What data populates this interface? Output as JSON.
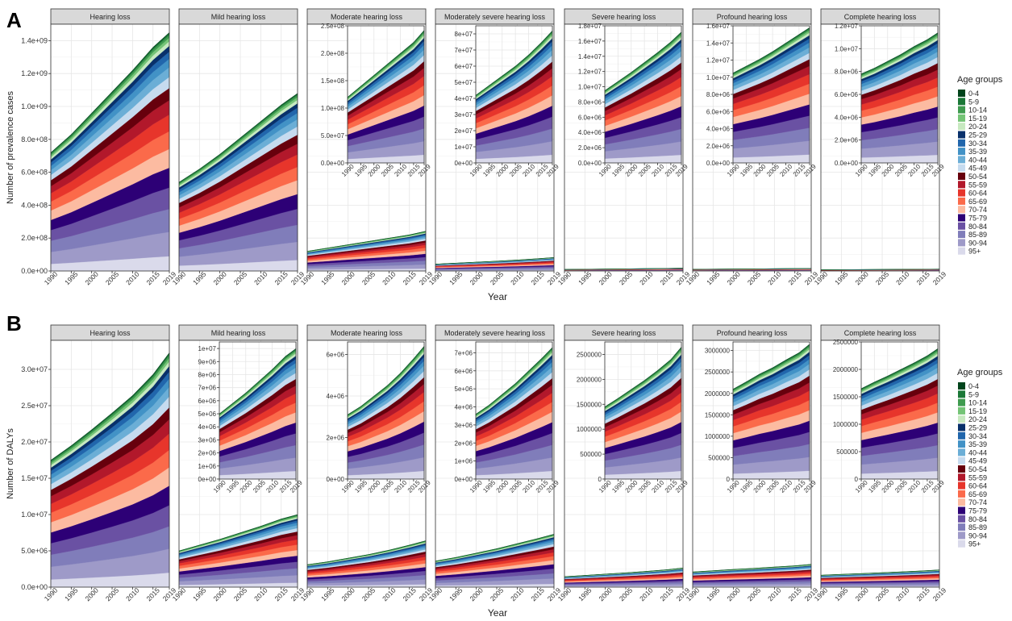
{
  "figure": {
    "years": [
      1990,
      1995,
      2000,
      2005,
      2010,
      2015,
      2019
    ],
    "xlabel": "Year",
    "legend": {
      "title": "Age groups",
      "items": [
        "0-4",
        "5-9",
        "10-14",
        "15-19",
        "20-24",
        "25-29",
        "30-34",
        "35-39",
        "40-44",
        "45-49",
        "50-54",
        "55-59",
        "60-64",
        "65-69",
        "70-74",
        "75-79",
        "80-84",
        "85-89",
        "90-94",
        "95+"
      ],
      "colors": [
        "#00441b",
        "#1b7837",
        "#3f9b4f",
        "#74c476",
        "#c7e9c0",
        "#08306b",
        "#2166ac",
        "#4292c6",
        "#6baed6",
        "#c6dbef",
        "#67000d",
        "#b2182b",
        "#e7352b",
        "#fb6a4a",
        "#fcbba1",
        "#2d0076",
        "#6a51a3",
        "#807dba",
        "#9e9ac8",
        "#dadaeb"
      ]
    },
    "panels": [
      {
        "letter": "A",
        "ylabel": "Number of prevalence cases"
      },
      {
        "letter": "B",
        "ylabel": "Number of DALYs"
      }
    ]
  },
  "chart_data": [
    {
      "type": "area",
      "panel": "A",
      "measure": "Number of prevalence cases",
      "x": [
        1990,
        1995,
        2000,
        2005,
        2010,
        2015,
        2019
      ],
      "ylim": [
        0,
        1500000000.0
      ],
      "ticks": [
        0,
        200000000.0,
        400000000.0,
        600000000.0,
        800000000.0,
        1000000000.0,
        1200000000.0,
        1400000000.0
      ],
      "tick_labels": [
        "0.0e+00",
        "2.0e+08",
        "4.0e+08",
        "6.0e+08",
        "8.0e+08",
        "1.0e+09",
        "1.2e+09",
        "1.4e+09"
      ],
      "facets": [
        {
          "title": "Hearing loss",
          "totals": [
            720000000.0,
            830000000.0,
            960000000.0,
            1090000000.0,
            1220000000.0,
            1360000000.0,
            1450000000.0
          ]
        },
        {
          "title": "Mild hearing loss",
          "totals": [
            540000000.0,
            620000000.0,
            710000000.0,
            810000000.0,
            910000000.0,
            1010000000.0,
            1080000000.0
          ]
        },
        {
          "title": "Moderate hearing loss",
          "totals": [
            120000000.0,
            140000000.0,
            160000000.0,
            180000000.0,
            200000000.0,
            220000000.0,
            242000000.0
          ],
          "inset": {
            "ylim": [
              0,
              250000000.0
            ],
            "ticks": [
              0,
              50000000.0,
              100000000.0,
              150000000.0,
              200000000.0,
              250000000.0
            ],
            "tick_labels": [
              "0.0e+00",
              "5.0e+07",
              "1.0e+08",
              "1.5e+08",
              "2.0e+08",
              "2.5e+08"
            ]
          }
        },
        {
          "title": "Moderately severe hearing loss",
          "totals": [
            42000000.0,
            48000000.0,
            54000000.0,
            60000000.0,
            67000000.0,
            75000000.0,
            82000000.0
          ],
          "inset": {
            "ylim": [
              0,
              85000000.0
            ],
            "ticks": [
              0,
              10000000.0,
              20000000.0,
              30000000.0,
              40000000.0,
              50000000.0,
              60000000.0,
              70000000.0,
              80000000.0
            ],
            "tick_labels": [
              "0e+00",
              "1e+07",
              "2e+07",
              "3e+07",
              "4e+07",
              "5e+07",
              "6e+07",
              "7e+07",
              "8e+07"
            ]
          }
        },
        {
          "title": "Severe hearing loss",
          "totals": [
            9500000.0,
            10700000.0,
            11900000.0,
            13200000.0,
            14500000.0,
            15900000.0,
            17200000.0
          ],
          "inset": {
            "ylim": [
              0,
              18000000.0
            ],
            "ticks": [
              0,
              2000000.0,
              4000000.0,
              6000000.0,
              8000000.0,
              10000000.0,
              12000000.0,
              14000000.0,
              16000000.0,
              18000000.0
            ],
            "tick_labels": [
              "0.0e+00",
              "2.0e+06",
              "4.0e+06",
              "6.0e+06",
              "8.0e+06",
              "1.0e+07",
              "1.2e+07",
              "1.4e+07",
              "1.6e+07",
              "1.8e+07"
            ]
          }
        },
        {
          "title": "Profound hearing loss",
          "totals": [
            10500000.0,
            11300000.0,
            12100000.0,
            13000000.0,
            14000000.0,
            15000000.0,
            15800000.0
          ],
          "inset": {
            "ylim": [
              0,
              16000000.0
            ],
            "ticks": [
              0,
              2000000.0,
              4000000.0,
              6000000.0,
              8000000.0,
              10000000.0,
              12000000.0,
              14000000.0,
              16000000.0
            ],
            "tick_labels": [
              "0.0e+00",
              "2.0e+06",
              "4.0e+06",
              "6.0e+06",
              "8.0e+06",
              "1.0e+07",
              "1.2e+07",
              "1.4e+07",
              "1.6e+07"
            ]
          }
        },
        {
          "title": "Complete hearing loss",
          "totals": [
            7800000.0,
            8300000.0,
            8900000.0,
            9500000.0,
            10200000.0,
            10800000.0,
            11400000.0
          ],
          "inset": {
            "ylim": [
              0,
              12000000.0
            ],
            "ticks": [
              0,
              2000000.0,
              4000000.0,
              6000000.0,
              8000000.0,
              10000000.0,
              12000000.0
            ],
            "tick_labels": [
              "0.0e+00",
              "2.0e+06",
              "4.0e+06",
              "6.0e+06",
              "8.0e+06",
              "1.0e+07",
              "1.2e+07"
            ]
          }
        }
      ]
    },
    {
      "type": "area",
      "panel": "B",
      "measure": "Number of DALYs",
      "x": [
        1990,
        1995,
        2000,
        2005,
        2010,
        2015,
        2019
      ],
      "ylim": [
        0,
        34000000.0
      ],
      "ticks": [
        0,
        5000000.0,
        10000000.0,
        15000000.0,
        20000000.0,
        25000000.0,
        30000000.0
      ],
      "tick_labels": [
        "0.0e+00",
        "5.0e+06",
        "1.0e+07",
        "1.5e+07",
        "2.0e+07",
        "2.5e+07",
        "3.0e+07"
      ],
      "facets": [
        {
          "title": "Hearing loss",
          "totals": [
            17500000.0,
            19500000.0,
            21700000.0,
            24000000.0,
            26400000.0,
            29300000.0,
            32300000.0
          ]
        },
        {
          "title": "Mild hearing loss",
          "totals": [
            5000000.0,
            5800000.0,
            6600000.0,
            7500000.0,
            8400000.0,
            9400000.0,
            10000000.0
          ],
          "inset": {
            "ylim": [
              0,
              10500000.0
            ],
            "ticks": [
              0,
              1000000.0,
              2000000.0,
              3000000.0,
              4000000.0,
              5000000.0,
              6000000.0,
              7000000.0,
              8000000.0,
              9000000.0,
              10000000.0
            ],
            "tick_labels": [
              "0e+00",
              "1e+06",
              "2e+06",
              "3e+06",
              "4e+06",
              "5e+06",
              "6e+06",
              "7e+06",
              "8e+06",
              "9e+06",
              "1e+07"
            ]
          }
        },
        {
          "title": "Moderate hearing loss",
          "totals": [
            3100000.0,
            3500000.0,
            4000000.0,
            4500000.0,
            5100000.0,
            5800000.0,
            6400000.0
          ],
          "inset": {
            "ylim": [
              0,
              6600000.0
            ],
            "ticks": [
              0,
              2000000.0,
              4000000.0,
              6000000.0
            ],
            "tick_labels": [
              "0e+00",
              "2e+06",
              "4e+06",
              "6e+06"
            ]
          }
        },
        {
          "title": "Moderately severe hearing loss",
          "totals": [
            3600000.0,
            4100000.0,
            4700000.0,
            5300000.0,
            6000000.0,
            6700000.0,
            7300000.0
          ],
          "inset": {
            "ylim": [
              0,
              7600000.0
            ],
            "ticks": [
              0,
              1000000.0,
              2000000.0,
              3000000.0,
              4000000.0,
              5000000.0,
              6000000.0,
              7000000.0
            ],
            "tick_labels": [
              "0e+00",
              "1e+06",
              "2e+06",
              "3e+06",
              "4e+06",
              "5e+06",
              "6e+06",
              "7e+06"
            ]
          }
        },
        {
          "title": "Severe hearing loss",
          "totals": [
            1450000.0,
            1620000.0,
            1800000.0,
            1980000.0,
            2180000.0,
            2400000.0,
            2650000.0
          ],
          "inset": {
            "ylim": [
              0,
              2750000.0
            ],
            "ticks": [
              0,
              500000,
              1000000,
              1500000,
              2000000,
              2500000
            ],
            "tick_labels": [
              "0",
              "500000",
              "1000000",
              "1500000",
              "2000000",
              "2500000"
            ]
          }
        },
        {
          "title": "Profound hearing loss",
          "totals": [
            2100000.0,
            2270000.0,
            2450000.0,
            2600000.0,
            2780000.0,
            2950000.0,
            3150000.0
          ],
          "inset": {
            "ylim": [
              0,
              3200000.0
            ],
            "ticks": [
              0,
              500000,
              1000000,
              1500000,
              2000000,
              2500000,
              3000000
            ],
            "tick_labels": [
              "0",
              "500000",
              "1000000",
              "1500000",
              "2000000",
              "2500000",
              "3000000"
            ]
          }
        },
        {
          "title": "Complete hearing loss",
          "totals": [
            1650000.0,
            1770000.0,
            1880000.0,
            2000000.0,
            2120000.0,
            2250000.0,
            2380000.0
          ],
          "inset": {
            "ylim": [
              0,
              2500000.0
            ],
            "ticks": [
              0,
              500000,
              1000000,
              1500000,
              2000000,
              2500000
            ],
            "tick_labels": [
              "0",
              "500000",
              "1000000",
              "1500000",
              "2000000",
              "2500000"
            ]
          }
        }
      ]
    }
  ]
}
